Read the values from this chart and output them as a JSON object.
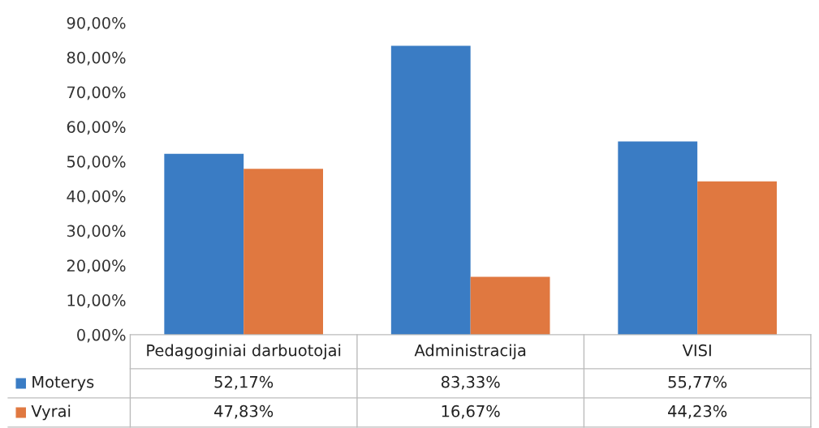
{
  "chart_data": {
    "type": "bar",
    "categories": [
      "Pedagoginiai darbuotojai",
      "Administracija",
      "VISI"
    ],
    "series": [
      {
        "name": "Moterys",
        "color": "#3a7cc4",
        "values": [
          52.17,
          83.33,
          55.77
        ],
        "value_labels": [
          "52,17%",
          "83,33%",
          "55,77%"
        ]
      },
      {
        "name": "Vyrai",
        "color": "#e07840",
        "values": [
          47.83,
          16.67,
          44.23
        ],
        "value_labels": [
          "47,83%",
          "16,67%",
          "44,23%"
        ]
      }
    ],
    "ylim": [
      0,
      90
    ],
    "yticks": [
      {
        "value": 0,
        "label": "0,00%"
      },
      {
        "value": 10,
        "label": "10,00%"
      },
      {
        "value": 20,
        "label": "20,00%"
      },
      {
        "value": 30,
        "label": "30,00%"
      },
      {
        "value": 40,
        "label": "40,00%"
      },
      {
        "value": 50,
        "label": "50,00%"
      },
      {
        "value": 60,
        "label": "60,00%"
      },
      {
        "value": 70,
        "label": "70,00%"
      },
      {
        "value": 80,
        "label": "80,00%"
      },
      {
        "value": 90,
        "label": "90,00%"
      }
    ],
    "grid": false,
    "legend": "bottom left"
  }
}
